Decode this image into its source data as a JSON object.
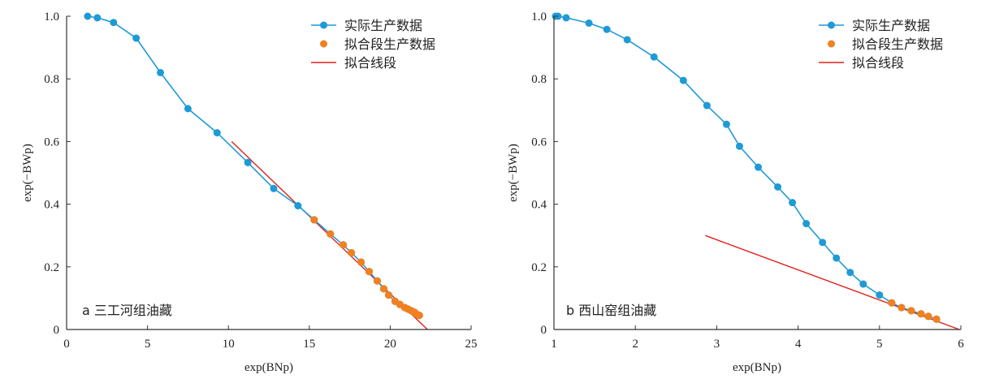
{
  "legend": {
    "actual": "实际生产数据",
    "fit_points": "拟合段生产数据",
    "fit_line": "拟合线段"
  },
  "colors": {
    "actual": "#1e9ad6",
    "fit_points": "#f08020",
    "fit_line": "#e0201c",
    "axis": "#333333"
  },
  "chart_data": [
    {
      "type": "scatter",
      "panel_label": "a 三工河组油藏",
      "xlabel": "exp(BNp)",
      "ylabel": "exp(−BWp)",
      "xlim": [
        0,
        25
      ],
      "ylim": [
        0,
        1.0
      ],
      "xticks": [
        0,
        5,
        10,
        15,
        20,
        25
      ],
      "yticks": [
        0,
        0.2,
        0.4,
        0.6,
        0.8,
        1.0
      ],
      "ytick_labels": [
        "0",
        "0.2",
        "0.4",
        "0.6",
        "0.8",
        "1.0"
      ],
      "legend_position": "top-right",
      "series": [
        {
          "name": "实际生产数据",
          "style": "line+marker",
          "x": [
            1.3,
            1.9,
            2.9,
            4.3,
            5.8,
            7.5,
            9.3,
            11.2,
            12.8,
            14.3,
            15.3,
            16.3,
            17.1,
            17.6,
            18.2,
            18.7,
            19.2,
            19.6,
            19.9,
            20.3,
            20.6,
            20.9,
            21.1,
            21.3,
            21.5,
            21.6,
            21.7,
            21.8
          ],
          "y": [
            1.0,
            0.995,
            0.98,
            0.93,
            0.82,
            0.705,
            0.628,
            0.533,
            0.45,
            0.395,
            0.35,
            0.305,
            0.27,
            0.245,
            0.215,
            0.185,
            0.155,
            0.13,
            0.11,
            0.09,
            0.08,
            0.07,
            0.065,
            0.06,
            0.055,
            0.05,
            0.047,
            0.045
          ]
        },
        {
          "name": "拟合段生产数据",
          "style": "marker",
          "x": [
            15.3,
            16.3,
            17.1,
            17.6,
            18.2,
            18.7,
            19.2,
            19.6,
            19.9,
            20.3,
            20.6,
            20.9,
            21.1,
            21.3,
            21.5,
            21.6,
            21.7,
            21.8
          ],
          "y": [
            0.35,
            0.305,
            0.27,
            0.245,
            0.215,
            0.185,
            0.155,
            0.13,
            0.11,
            0.09,
            0.08,
            0.07,
            0.065,
            0.06,
            0.055,
            0.05,
            0.047,
            0.045
          ]
        },
        {
          "name": "拟合线段",
          "style": "line",
          "x": [
            10.2,
            22.3
          ],
          "y": [
            0.6,
            0.0
          ]
        }
      ]
    },
    {
      "type": "scatter",
      "panel_label": "b 西山窑组油藏",
      "xlabel": "exp(BNp)",
      "ylabel": "exp(−BWp)",
      "xlim": [
        1,
        6
      ],
      "ylim": [
        0,
        1.0
      ],
      "xticks": [
        1,
        2,
        3,
        4,
        5,
        6
      ],
      "yticks": [
        0,
        0.2,
        0.4,
        0.6,
        0.8,
        1.0
      ],
      "ytick_labels": [
        "0",
        "0.2",
        "0.4",
        "0.6",
        "0.8",
        "1.0"
      ],
      "legend_position": "top-right",
      "series": [
        {
          "name": "实际生产数据",
          "style": "line+marker",
          "x": [
            1.02,
            1.05,
            1.15,
            1.43,
            1.65,
            1.9,
            2.23,
            2.59,
            2.88,
            3.12,
            3.28,
            3.51,
            3.75,
            3.93,
            4.1,
            4.3,
            4.47,
            4.64,
            4.8,
            5.0,
            5.15,
            5.27,
            5.39,
            5.51,
            5.6,
            5.7
          ],
          "y": [
            1.0,
            1.0,
            0.995,
            0.978,
            0.958,
            0.925,
            0.87,
            0.795,
            0.715,
            0.655,
            0.585,
            0.518,
            0.455,
            0.405,
            0.338,
            0.278,
            0.228,
            0.182,
            0.145,
            0.11,
            0.085,
            0.07,
            0.06,
            0.05,
            0.042,
            0.033
          ]
        },
        {
          "name": "拟合段生产数据",
          "style": "marker",
          "x": [
            5.15,
            5.27,
            5.39,
            5.51,
            5.6,
            5.7
          ],
          "y": [
            0.085,
            0.07,
            0.06,
            0.05,
            0.042,
            0.033
          ]
        },
        {
          "name": "拟合线段",
          "style": "line",
          "x": [
            2.86,
            5.98
          ],
          "y": [
            0.3,
            0.0
          ]
        }
      ]
    }
  ]
}
